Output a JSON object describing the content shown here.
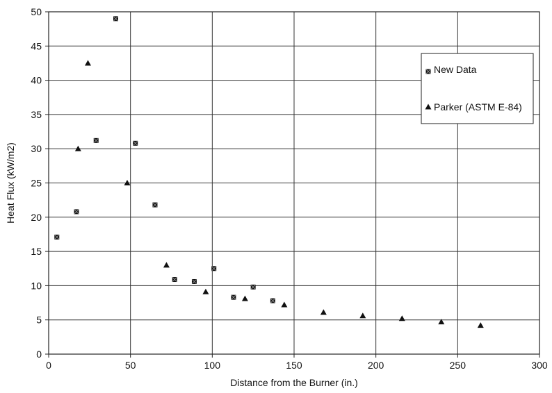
{
  "chart_data": {
    "type": "scatter",
    "xlabel": "Distance from the Burner (in.)",
    "ylabel": "Heat Flux (kW/m2)",
    "xlim": [
      0,
      300
    ],
    "ylim": [
      0,
      50
    ],
    "x_ticks": [
      0,
      50,
      100,
      150,
      200,
      250,
      300
    ],
    "y_ticks": [
      0,
      5,
      10,
      15,
      20,
      25,
      30,
      35,
      40,
      45,
      50
    ],
    "grid": true,
    "legend_position": "top-right",
    "series": [
      {
        "name": "New Data",
        "marker": "square-x",
        "color": "#111111",
        "points": [
          {
            "x": 5,
            "y": 17.1
          },
          {
            "x": 17,
            "y": 20.8
          },
          {
            "x": 29,
            "y": 31.2
          },
          {
            "x": 41,
            "y": 49
          },
          {
            "x": 53,
            "y": 30.8
          },
          {
            "x": 65,
            "y": 21.8
          },
          {
            "x": 77,
            "y": 10.9
          },
          {
            "x": 89,
            "y": 10.6
          },
          {
            "x": 101,
            "y": 12.5
          },
          {
            "x": 113,
            "y": 8.3
          },
          {
            "x": 125,
            "y": 9.8
          },
          {
            "x": 137,
            "y": 7.8
          }
        ]
      },
      {
        "name": "Parker (ASTM E-84)",
        "marker": "triangle",
        "color": "#111111",
        "points": [
          {
            "x": 18,
            "y": 30
          },
          {
            "x": 24,
            "y": 42.5
          },
          {
            "x": 48,
            "y": 25
          },
          {
            "x": 72,
            "y": 13
          },
          {
            "x": 96,
            "y": 9.1
          },
          {
            "x": 120,
            "y": 8.1
          },
          {
            "x": 144,
            "y": 7.2
          },
          {
            "x": 168,
            "y": 6.1
          },
          {
            "x": 192,
            "y": 5.6
          },
          {
            "x": 216,
            "y": 5.2
          },
          {
            "x": 240,
            "y": 4.7
          },
          {
            "x": 264,
            "y": 4.2
          }
        ]
      }
    ]
  }
}
